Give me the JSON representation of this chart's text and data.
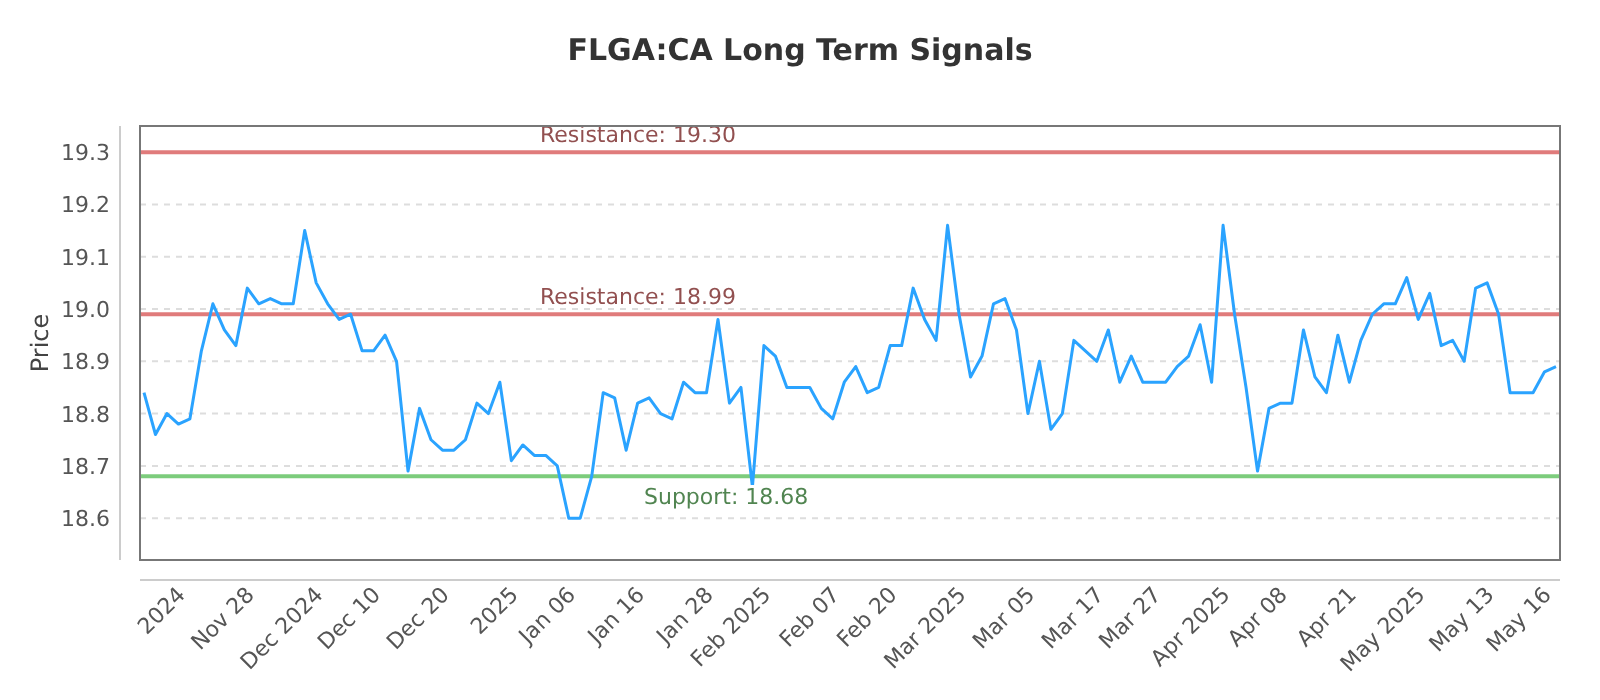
{
  "chart_data": {
    "type": "line",
    "title": "FLGA:CA Long Term Signals",
    "ylabel": "Price",
    "categories": [
      null,
      null,
      null,
      "2024",
      null,
      null,
      null,
      null,
      null,
      "Nov 28",
      null,
      null,
      null,
      null,
      null,
      "Dec 2024",
      null,
      null,
      null,
      null,
      "Dec 10",
      null,
      null,
      null,
      null,
      null,
      "Dec 20",
      null,
      null,
      null,
      null,
      null,
      "2025",
      null,
      null,
      null,
      null,
      "Jan 06",
      null,
      null,
      null,
      null,
      null,
      "Jan 16",
      null,
      null,
      null,
      null,
      null,
      "Jan 28",
      null,
      null,
      null,
      null,
      "Feb 2025",
      null,
      null,
      null,
      null,
      null,
      "Feb 07",
      null,
      null,
      null,
      null,
      "Feb 20",
      null,
      null,
      null,
      null,
      null,
      "Mar 2025",
      null,
      null,
      null,
      null,
      null,
      "Mar 05",
      null,
      null,
      null,
      null,
      null,
      "Mar 17",
      null,
      null,
      null,
      null,
      "Mar 27",
      null,
      null,
      null,
      null,
      null,
      "Apr 2025",
      null,
      null,
      null,
      null,
      "Apr 08",
      null,
      null,
      null,
      null,
      null,
      "Apr 21",
      null,
      null,
      null,
      null,
      null,
      "May 2025",
      null,
      null,
      null,
      null,
      null,
      "May 13",
      null,
      null,
      null,
      null,
      "May 16",
      null
    ],
    "series": [
      {
        "color": "#2aa3ff",
        "values": [
          18.84,
          18.76,
          18.8,
          18.78,
          18.79,
          18.92,
          19.01,
          18.96,
          18.93,
          19.04,
          19.01,
          19.02,
          19.01,
          19.01,
          19.15,
          19.05,
          19.01,
          18.98,
          18.99,
          18.92,
          18.92,
          18.95,
          18.9,
          18.69,
          18.81,
          18.75,
          18.73,
          18.73,
          18.75,
          18.82,
          18.8,
          18.86,
          18.71,
          18.74,
          18.72,
          18.72,
          18.7,
          18.6,
          18.6,
          18.68,
          18.84,
          18.83,
          18.73,
          18.82,
          18.83,
          18.8,
          18.79,
          18.86,
          18.84,
          18.84,
          18.98,
          18.82,
          18.85,
          18.66,
          18.93,
          18.91,
          18.85,
          18.85,
          18.85,
          18.81,
          18.79,
          18.86,
          18.89,
          18.84,
          18.85,
          18.93,
          18.93,
          19.04,
          18.98,
          18.94,
          19.16,
          18.99,
          18.87,
          18.91,
          19.01,
          19.02,
          18.96,
          18.8,
          18.9,
          18.77,
          18.8,
          18.94,
          18.92,
          18.9,
          18.96,
          18.86,
          18.91,
          18.86,
          18.86,
          18.86,
          18.89,
          18.91,
          18.97,
          18.86,
          19.16,
          18.99,
          18.85,
          18.69,
          18.81,
          18.82,
          18.82,
          18.96,
          18.87,
          18.84,
          18.95,
          18.86,
          18.94,
          18.99,
          19.01,
          19.01,
          19.06,
          18.98,
          19.03,
          18.93,
          18.94,
          18.9,
          19.04,
          19.05,
          18.99,
          18.84,
          18.84,
          18.84,
          18.88,
          18.89
        ]
      }
    ],
    "ylim": [
      18.52,
      19.35
    ],
    "yticks": [
      18.6,
      18.7,
      18.8,
      18.9,
      {
        "value": 19,
        "label": "19.0"
      },
      19.1,
      19.2,
      19.3
    ],
    "grid": "y",
    "marker": "none",
    "line_style": "solid",
    "ref_lines": [
      {
        "axis": "y",
        "value": 19.3,
        "label": "Resistance: 19.30",
        "color": "#e07b7b"
      },
      {
        "axis": "y",
        "value": 18.99,
        "label": "Resistance: 18.99",
        "color": "#e07b7b"
      },
      {
        "axis": "y",
        "value": 18.68,
        "label": "Support: 18.68",
        "color": "#7ccc7c"
      }
    ]
  }
}
